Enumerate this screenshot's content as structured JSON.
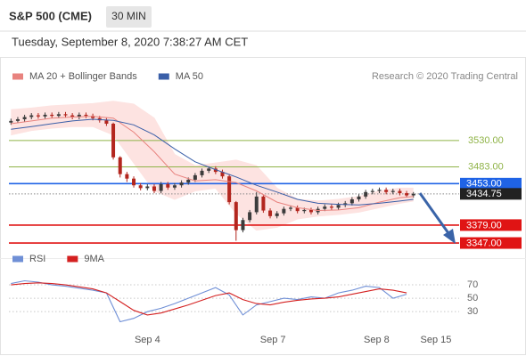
{
  "header": {
    "symbol": "S&P 500 (CME)",
    "interval": "30 MIN",
    "timestamp": "Tuesday, September 8, 2020 7:38:27 AM CET"
  },
  "chart_data": [
    {
      "type": "candlestick",
      "credit": "Research © 2020 Trading Central",
      "xlim": [
        -0.3,
        65.7
      ],
      "ylim": [
        3328,
        3622
      ],
      "up_color": "#3c3c3c",
      "down_color": "#b3261e",
      "open": [
        3562,
        3565,
        3568,
        3572,
        3575,
        3573,
        3576,
        3574,
        3577,
        3575,
        3572,
        3576,
        3574,
        3570,
        3566,
        3560,
        3500,
        3470,
        3462,
        3450,
        3445,
        3448,
        3440,
        3452,
        3446,
        3450,
        3455,
        3460,
        3468,
        3476,
        3480,
        3474,
        3466,
        3420,
        3370,
        3388,
        3402,
        3430,
        3405,
        3395,
        3400,
        3408,
        3410,
        3404,
        3406,
        3402,
        3408,
        3412,
        3410,
        3415,
        3418,
        3425,
        3430,
        3438,
        3440,
        3442,
        3438,
        3440,
        3436,
        3432
      ],
      "high": [
        3569,
        3572,
        3576,
        3579,
        3579,
        3580,
        3580,
        3581,
        3581,
        3579,
        3580,
        3580,
        3578,
        3574,
        3570,
        3562,
        3502,
        3474,
        3466,
        3454,
        3452,
        3452,
        3456,
        3456,
        3454,
        3459,
        3464,
        3472,
        3480,
        3484,
        3484,
        3478,
        3470,
        3422,
        3392,
        3406,
        3438,
        3432,
        3409,
        3404,
        3412,
        3414,
        3414,
        3410,
        3410,
        3412,
        3416,
        3416,
        3419,
        3422,
        3429,
        3434,
        3442,
        3444,
        3446,
        3446,
        3444,
        3444,
        3440,
        3438
      ],
      "low": [
        3558,
        3561,
        3564,
        3568,
        3569,
        3569,
        3570,
        3570,
        3571,
        3568,
        3568,
        3570,
        3566,
        3562,
        3556,
        3496,
        3464,
        3456,
        3446,
        3441,
        3441,
        3436,
        3436,
        3442,
        3442,
        3446,
        3451,
        3456,
        3464,
        3472,
        3470,
        3462,
        3416,
        3351,
        3366,
        3384,
        3398,
        3401,
        3391,
        3391,
        3396,
        3404,
        3400,
        3400,
        3398,
        3398,
        3404,
        3406,
        3406,
        3411,
        3414,
        3421,
        3426,
        3434,
        3436,
        3434,
        3434,
        3432,
        3428,
        3428
      ],
      "close": [
        3565,
        3568,
        3572,
        3575,
        3573,
        3576,
        3574,
        3577,
        3575,
        3572,
        3576,
        3574,
        3570,
        3566,
        3560,
        3500,
        3470,
        3462,
        3450,
        3445,
        3448,
        3440,
        3452,
        3446,
        3450,
        3455,
        3460,
        3468,
        3476,
        3480,
        3474,
        3466,
        3420,
        3370,
        3388,
        3402,
        3430,
        3405,
        3395,
        3400,
        3408,
        3410,
        3404,
        3406,
        3402,
        3408,
        3412,
        3410,
        3415,
        3418,
        3425,
        3430,
        3438,
        3440,
        3442,
        3438,
        3440,
        3436,
        3432,
        3434.75
      ],
      "series": [
        {
          "name": "MA 20 + Bollinger Bands",
          "color": "#e8837f",
          "band_color": "#fde3e1",
          "x": [
            0,
            3,
            6,
            9,
            12,
            15,
            18,
            21,
            24,
            27,
            30,
            33,
            36,
            39,
            42,
            45,
            48,
            51,
            54,
            57,
            59
          ],
          "values": [
            3560,
            3565,
            3570,
            3572,
            3573,
            3570,
            3545,
            3510,
            3470,
            3458,
            3460,
            3455,
            3440,
            3420,
            3410,
            3405,
            3406,
            3410,
            3420,
            3428,
            3430
          ],
          "upper": [
            3585,
            3588,
            3592,
            3594,
            3596,
            3600,
            3595,
            3570,
            3505,
            3485,
            3490,
            3495,
            3485,
            3445,
            3425,
            3422,
            3425,
            3430,
            3440,
            3445,
            3445
          ],
          "lower": [
            3540,
            3548,
            3552,
            3555,
            3555,
            3540,
            3490,
            3440,
            3425,
            3440,
            3445,
            3400,
            3370,
            3375,
            3390,
            3395,
            3398,
            3402,
            3410,
            3418,
            3422
          ]
        },
        {
          "name": "MA 50",
          "color": "#3a5fa8",
          "x": [
            0,
            3,
            6,
            9,
            12,
            15,
            18,
            21,
            24,
            27,
            30,
            33,
            36,
            39,
            42,
            45,
            48,
            51,
            54,
            57,
            59
          ],
          "values": [
            3550,
            3555,
            3560,
            3565,
            3568,
            3566,
            3558,
            3540,
            3515,
            3492,
            3478,
            3465,
            3450,
            3438,
            3425,
            3418,
            3416,
            3415,
            3418,
            3422,
            3425
          ]
        }
      ],
      "levels": [
        {
          "value": 3530,
          "label": "3530.00",
          "color": "#8fb347",
          "boxed": false,
          "dashed": false
        },
        {
          "value": 3483,
          "label": "3483.00",
          "color": "#8fb347",
          "boxed": false,
          "dashed": false
        },
        {
          "value": 3453,
          "label": "3453.00",
          "color": "#1f63e6",
          "boxed": true,
          "dashed": false
        },
        {
          "value": 3434.75,
          "label": "3434.75",
          "color": "#222222",
          "boxed": true,
          "dashed": true
        },
        {
          "value": 3379,
          "label": "3379.00",
          "color": "#e01414",
          "boxed": true,
          "dashed": false
        },
        {
          "value": 3347,
          "label": "3347.00",
          "color": "#e01414",
          "boxed": true,
          "dashed": false
        }
      ]
    },
    {
      "type": "line",
      "xlim": [
        -0.3,
        65.7
      ],
      "ylim": [
        5,
        90
      ],
      "yticks": [
        30,
        50,
        70
      ],
      "grid": true,
      "xticks": [
        {
          "value": 20,
          "label": "Sep 4"
        },
        {
          "value": 38.4,
          "label": "Sep 7"
        },
        {
          "value": 53.6,
          "label": "Sep 8"
        },
        {
          "value": 62.3,
          "label": "Sep 15"
        }
      ],
      "series": [
        {
          "name": "RSI",
          "color": "#6f8fd6",
          "x": [
            0,
            2,
            4,
            6,
            8,
            10,
            12,
            14,
            16,
            18,
            20,
            22,
            24,
            26,
            28,
            30,
            32,
            34,
            36,
            38,
            40,
            42,
            44,
            46,
            48,
            50,
            52,
            54,
            56,
            58
          ],
          "values": [
            72,
            76,
            74,
            70,
            68,
            65,
            62,
            58,
            15,
            20,
            30,
            35,
            42,
            50,
            58,
            66,
            55,
            25,
            40,
            45,
            50,
            48,
            52,
            50,
            58,
            62,
            68,
            66,
            50,
            56
          ]
        },
        {
          "name": "9MA",
          "color": "#d42020",
          "x": [
            0,
            2,
            4,
            6,
            8,
            10,
            12,
            14,
            16,
            18,
            20,
            22,
            24,
            26,
            28,
            30,
            32,
            34,
            36,
            38,
            40,
            42,
            44,
            46,
            48,
            50,
            52,
            54,
            56,
            58
          ],
          "values": [
            70,
            72,
            73,
            72,
            70,
            67,
            64,
            58,
            45,
            32,
            25,
            28,
            34,
            40,
            47,
            54,
            58,
            48,
            42,
            40,
            44,
            47,
            49,
            50,
            52,
            56,
            60,
            64,
            62,
            58
          ]
        }
      ]
    }
  ]
}
